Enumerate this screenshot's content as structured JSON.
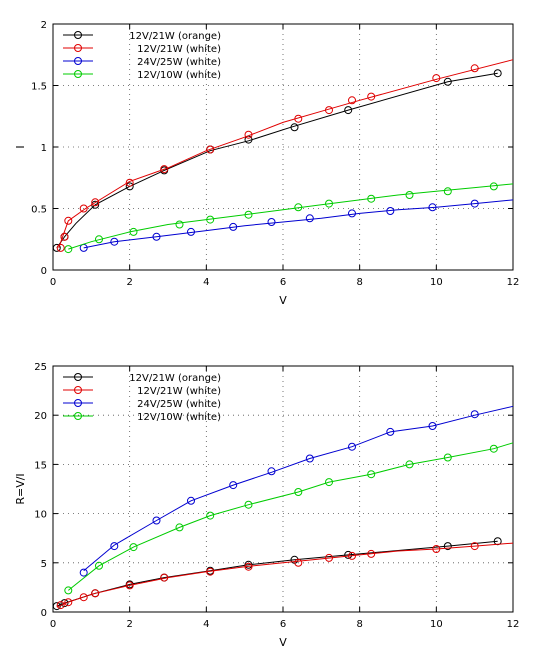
{
  "colors": {
    "12V/21W (orange)": "#000000",
    "12V/21W (white)": "#e00000",
    "24V/25W (white)": "#0000d0",
    "12V/10W (white)": "#00cc00"
  },
  "chart_data": [
    {
      "type": "line",
      "title": "",
      "xlabel": "V",
      "ylabel": "I",
      "xlim": [
        0,
        12
      ],
      "ylim": [
        0,
        2
      ],
      "x_ticks": [
        "0",
        "2",
        "4",
        "6",
        "8",
        "10",
        "12"
      ],
      "y_ticks": [
        "0",
        "0.5",
        "1",
        "1.5",
        "2"
      ],
      "grid": true,
      "legend_position": "top-left",
      "series": [
        {
          "name": "12V/21W (orange)",
          "line": [
            [
              0.1,
              0.18
            ],
            [
              0.3,
              0.27
            ],
            [
              0.6,
              0.38
            ],
            [
              1.1,
              0.53
            ],
            [
              2,
              0.68
            ],
            [
              2.9,
              0.81
            ],
            [
              4.1,
              0.97
            ],
            [
              5.1,
              1.05
            ],
            [
              6.2,
              1.16
            ],
            [
              7.7,
              1.3
            ],
            [
              10.3,
              1.53
            ],
            [
              11.6,
              1.6
            ]
          ],
          "markers": [
            [
              0.1,
              0.18
            ],
            [
              0.3,
              0.27
            ],
            [
              1.1,
              0.53
            ],
            [
              2,
              0.68
            ],
            [
              2.9,
              0.81
            ],
            [
              4.1,
              0.98
            ],
            [
              5.1,
              1.06
            ],
            [
              6.3,
              1.16
            ],
            [
              7.7,
              1.3
            ],
            [
              10.3,
              1.53
            ],
            [
              11.6,
              1.6
            ]
          ]
        },
        {
          "name": "12V/21W (white)",
          "line": [
            [
              0.15,
              0.18
            ],
            [
              0.25,
              0.27
            ],
            [
              0.4,
              0.4
            ],
            [
              0.85,
              0.5
            ],
            [
              2,
              0.72
            ],
            [
              3,
              0.83
            ],
            [
              4,
              0.97
            ],
            [
              5,
              1.08
            ],
            [
              6,
              1.2
            ],
            [
              7,
              1.29
            ],
            [
              8,
              1.38
            ],
            [
              10,
              1.55
            ],
            [
              12,
              1.71
            ]
          ],
          "markers": [
            [
              0.2,
              0.18
            ],
            [
              0.3,
              0.27
            ],
            [
              0.4,
              0.4
            ],
            [
              0.8,
              0.5
            ],
            [
              1.1,
              0.55
            ],
            [
              2,
              0.71
            ],
            [
              2.9,
              0.82
            ],
            [
              4.1,
              0.98
            ],
            [
              5.1,
              1.1
            ],
            [
              6.4,
              1.23
            ],
            [
              7.2,
              1.3
            ],
            [
              7.8,
              1.38
            ],
            [
              8.3,
              1.41
            ],
            [
              10,
              1.56
            ],
            [
              11,
              1.64
            ]
          ]
        },
        {
          "name": "24V/25W (white)",
          "line": [
            [
              0.8,
              0.18
            ],
            [
              1.6,
              0.23
            ],
            [
              2.7,
              0.27
            ],
            [
              4,
              0.32
            ],
            [
              5,
              0.36
            ],
            [
              6,
              0.39
            ],
            [
              7,
              0.42
            ],
            [
              8,
              0.46
            ],
            [
              9,
              0.49
            ],
            [
              10,
              0.51
            ],
            [
              11,
              0.54
            ],
            [
              12,
              0.57
            ]
          ],
          "markers": [
            [
              0.8,
              0.18
            ],
            [
              1.6,
              0.23
            ],
            [
              2.7,
              0.27
            ],
            [
              3.6,
              0.31
            ],
            [
              4.7,
              0.35
            ],
            [
              5.7,
              0.39
            ],
            [
              6.7,
              0.42
            ],
            [
              7.8,
              0.46
            ],
            [
              8.8,
              0.48
            ],
            [
              9.9,
              0.51
            ],
            [
              11,
              0.54
            ]
          ]
        },
        {
          "name": "12V/10W (white)",
          "line": [
            [
              0.4,
              0.17
            ],
            [
              1,
              0.23
            ],
            [
              2,
              0.31
            ],
            [
              3,
              0.37
            ],
            [
              4,
              0.41
            ],
            [
              5,
              0.45
            ],
            [
              6,
              0.49
            ],
            [
              7,
              0.53
            ],
            [
              8,
              0.57
            ],
            [
              9,
              0.61
            ],
            [
              10,
              0.64
            ],
            [
              11,
              0.67
            ],
            [
              12,
              0.7
            ]
          ],
          "markers": [
            [
              0.4,
              0.17
            ],
            [
              1.2,
              0.25
            ],
            [
              2.1,
              0.31
            ],
            [
              3.3,
              0.37
            ],
            [
              4.1,
              0.41
            ],
            [
              5.1,
              0.45
            ],
            [
              6.4,
              0.51
            ],
            [
              7.2,
              0.54
            ],
            [
              8.3,
              0.58
            ],
            [
              9.3,
              0.61
            ],
            [
              10.3,
              0.64
            ],
            [
              11.5,
              0.68
            ]
          ]
        }
      ]
    },
    {
      "type": "line",
      "title": "",
      "xlabel": "V",
      "ylabel": "R=V/I",
      "xlim": [
        0,
        12
      ],
      "ylim": [
        0,
        25
      ],
      "x_ticks": [
        "0",
        "2",
        "4",
        "6",
        "8",
        "10",
        "12"
      ],
      "y_ticks": [
        "0",
        "5",
        "10",
        "15",
        "20",
        "25"
      ],
      "grid": true,
      "legend_position": "top-left",
      "series": [
        {
          "name": "12V/21W (orange)",
          "line": [
            [
              0.1,
              0.6
            ],
            [
              0.3,
              0.9
            ],
            [
              1.1,
              1.9
            ],
            [
              2,
              2.8
            ],
            [
              2.9,
              3.5
            ],
            [
              4.1,
              4.2
            ],
            [
              5.1,
              4.8
            ],
            [
              6.3,
              5.3
            ],
            [
              7.7,
              5.8
            ],
            [
              10.3,
              6.7
            ],
            [
              11.6,
              7.2
            ]
          ],
          "markers": [
            [
              0.1,
              0.6
            ],
            [
              0.3,
              0.9
            ],
            [
              1.1,
              1.9
            ],
            [
              2,
              2.8
            ],
            [
              2.9,
              3.5
            ],
            [
              4.1,
              4.2
            ],
            [
              5.1,
              4.8
            ],
            [
              6.3,
              5.3
            ],
            [
              7.7,
              5.8
            ],
            [
              10.3,
              6.7
            ],
            [
              11.6,
              7.2
            ]
          ]
        },
        {
          "name": "12V/21W (white)",
          "line": [
            [
              0.1,
              0.5
            ],
            [
              0.4,
              1.0
            ],
            [
              1,
              1.8
            ],
            [
              2,
              2.7
            ],
            [
              3,
              3.5
            ],
            [
              4,
              4.1
            ],
            [
              5,
              4.6
            ],
            [
              6,
              5.0
            ],
            [
              7,
              5.4
            ],
            [
              8,
              5.8
            ],
            [
              9,
              6.2
            ],
            [
              10,
              6.4
            ],
            [
              11,
              6.7
            ],
            [
              12,
              7.0
            ]
          ],
          "markers": [
            [
              0.2,
              0.7
            ],
            [
              0.4,
              1.0
            ],
            [
              0.8,
              1.5
            ],
            [
              1.1,
              1.9
            ],
            [
              2,
              2.7
            ],
            [
              2.9,
              3.5
            ],
            [
              4.1,
              4.1
            ],
            [
              5.1,
              4.6
            ],
            [
              6.4,
              5.0
            ],
            [
              7.2,
              5.5
            ],
            [
              7.8,
              5.7
            ],
            [
              8.3,
              5.9
            ],
            [
              10,
              6.4
            ],
            [
              11,
              6.7
            ]
          ]
        },
        {
          "name": "24V/25W (white)",
          "line": [
            [
              0.8,
              4.2
            ],
            [
              1.6,
              6.8
            ],
            [
              2.7,
              9.3
            ],
            [
              3.6,
              11.3
            ],
            [
              4.7,
              12.9
            ],
            [
              5.7,
              14.2
            ],
            [
              6.7,
              15.6
            ],
            [
              7.8,
              16.8
            ],
            [
              8.8,
              18.3
            ],
            [
              9.9,
              18.9
            ],
            [
              11,
              20.0
            ],
            [
              12,
              20.9
            ]
          ],
          "markers": [
            [
              0.8,
              4.0
            ],
            [
              1.6,
              6.7
            ],
            [
              2.7,
              9.3
            ],
            [
              3.6,
              11.3
            ],
            [
              4.7,
              12.9
            ],
            [
              5.7,
              14.3
            ],
            [
              6.7,
              15.6
            ],
            [
              7.8,
              16.8
            ],
            [
              8.8,
              18.3
            ],
            [
              9.9,
              18.9
            ],
            [
              11,
              20.1
            ]
          ]
        },
        {
          "name": "12V/10W (white)",
          "line": [
            [
              0.4,
              2.2
            ],
            [
              1.2,
              4.7
            ],
            [
              2.1,
              6.6
            ],
            [
              3.3,
              8.6
            ],
            [
              4.1,
              9.8
            ],
            [
              5.1,
              10.9
            ],
            [
              6.4,
              12.2
            ],
            [
              7.2,
              13.2
            ],
            [
              8.3,
              14.0
            ],
            [
              9.3,
              15.0
            ],
            [
              10.3,
              15.7
            ],
            [
              11.5,
              16.6
            ],
            [
              12,
              17.2
            ]
          ],
          "markers": [
            [
              0.4,
              2.2
            ],
            [
              1.2,
              4.7
            ],
            [
              2.1,
              6.6
            ],
            [
              3.3,
              8.6
            ],
            [
              4.1,
              9.8
            ],
            [
              5.1,
              10.9
            ],
            [
              6.4,
              12.2
            ],
            [
              7.2,
              13.2
            ],
            [
              8.3,
              14.0
            ],
            [
              9.3,
              15.0
            ],
            [
              10.3,
              15.7
            ],
            [
              11.5,
              16.6
            ]
          ]
        }
      ]
    }
  ]
}
